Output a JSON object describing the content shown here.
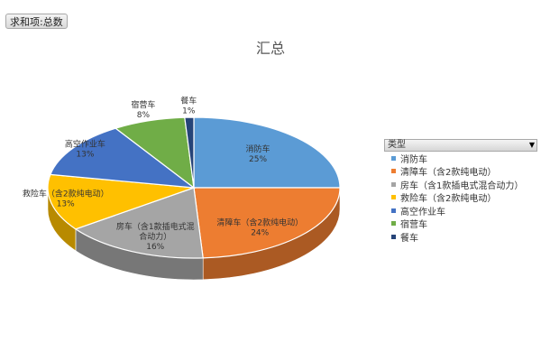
{
  "field_button": {
    "label": "求和项:总数"
  },
  "legend": {
    "header": "类型"
  },
  "colors": {
    "消防车": "#5b9bd5",
    "清障车（含2款纯电动）": "#ed7d31",
    "房车（含1款插电式混合动力）": "#a5a5a5",
    "救险车（含2款纯电动）": "#ffc000",
    "高空作业车": "#4472c4",
    "宿营车": "#70ad47",
    "餐车": "#264478"
  },
  "chart_data": {
    "type": "pie",
    "title": "汇总",
    "legend_position": "right",
    "slices": [
      {
        "name": "消防车",
        "value": 25,
        "label_lines": [
          "消防车"
        ],
        "percent": "25%"
      },
      {
        "name": "清障车（含2款纯电动）",
        "value": 24,
        "label_lines": [
          "清障车（含2款纯电动）"
        ],
        "percent": "24%"
      },
      {
        "name": "房车（含1款插电式混合动力）",
        "value": 16,
        "label_lines": [
          "房车（含1款插电式混",
          "合动力）"
        ],
        "percent": "16%"
      },
      {
        "name": "救险车（含2款纯电动）",
        "value": 13,
        "label_lines": [
          "救险车（含2款纯电动）"
        ],
        "percent": "13%"
      },
      {
        "name": "高空作业车",
        "value": 13,
        "label_lines": [
          "高空作业车"
        ],
        "percent": "13%"
      },
      {
        "name": "宿营车",
        "value": 8,
        "label_lines": [
          "宿营车"
        ],
        "percent": "8%"
      },
      {
        "name": "餐车",
        "value": 1,
        "label_lines": [
          "餐车"
        ],
        "percent": "1%"
      }
    ]
  }
}
